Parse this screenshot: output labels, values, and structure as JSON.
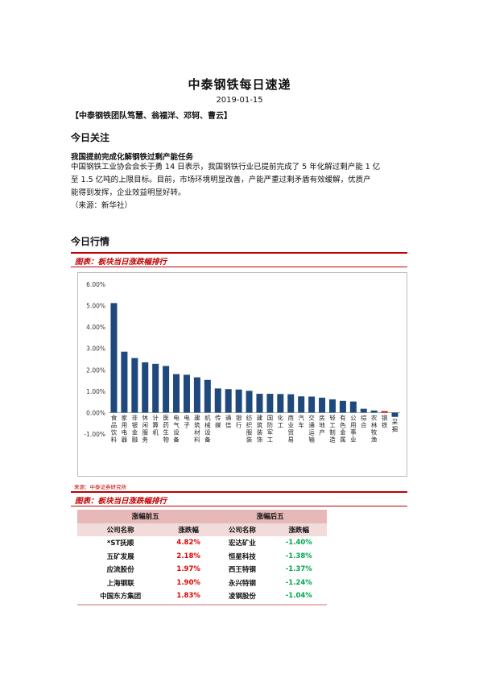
{
  "doc": {
    "title": "中泰钢铁每日速递",
    "date": "2019-01-15",
    "authors": "【中泰钢铁团队笃慧、翁福洋、邓轲、曹云】"
  },
  "focus": {
    "heading": "今日关注",
    "headline": "我国提前完成化解钢铁过剩产能任务",
    "lines": [
      "中国钢铁工业协会会长于勇 14 日表示，我国钢铁行业已提前完成了 5 年化解过剩产能 1 亿",
      "至 1.5 亿吨的上限目标。目前，市场环境明显改善，产能严重过剩矛盾有效缓解，优质产",
      "能得到发挥，企业效益明显好转。",
      "（来源：新华社）"
    ]
  },
  "market": {
    "heading": "今日行情",
    "fig1_title": "图表：板块当日涨跌幅排行",
    "fig1_source": "来源：中泰证券研究所",
    "fig2_title": "图表：板块当日涨跌幅排行"
  },
  "chart_data": {
    "type": "bar",
    "categories": [
      "食品饮料",
      "家用电器",
      "非银金融",
      "休闲服务",
      "计算机",
      "医药生物",
      "电气设备",
      "电子",
      "建筑材料",
      "机械设备",
      "传媒",
      "通信",
      "银行",
      "纺织服装",
      "建筑装饰",
      "国防军工",
      "化工",
      "商业贸易",
      "汽车",
      "交通运输",
      "房地产",
      "轻工制造",
      "有色金属",
      "公用事业",
      "综合",
      "农林牧渔",
      "钢铁",
      "采掘"
    ],
    "values": [
      5.12,
      2.85,
      2.55,
      2.35,
      2.28,
      2.18,
      1.8,
      1.77,
      1.65,
      1.53,
      1.13,
      1.1,
      1.08,
      1.02,
      0.88,
      0.88,
      0.87,
      0.86,
      0.76,
      0.75,
      0.7,
      0.62,
      0.55,
      0.52,
      0.18,
      0.1,
      0.07,
      -0.2
    ],
    "colors": [
      "#1f497d",
      "#1f497d",
      "#1f497d",
      "#1f497d",
      "#1f497d",
      "#1f497d",
      "#1f497d",
      "#1f497d",
      "#1f497d",
      "#1f497d",
      "#1f497d",
      "#1f497d",
      "#1f497d",
      "#1f497d",
      "#1f497d",
      "#1f497d",
      "#1f497d",
      "#1f497d",
      "#1f497d",
      "#1f497d",
      "#1f497d",
      "#1f497d",
      "#1f497d",
      "#1f497d",
      "#1f497d",
      "#1f497d",
      "#e00000",
      "#1f497d"
    ],
    "yticks": [
      "6.00%",
      "5.00%",
      "4.00%",
      "3.00%",
      "2.00%",
      "1.00%",
      "0.00%",
      "-1.00%"
    ],
    "ylim": [
      -1,
      6
    ],
    "grid": false,
    "title": "",
    "xlabel": "",
    "ylabel": ""
  },
  "table": {
    "group_top": "涨幅前五",
    "group_bottom": "涨幅后五",
    "col_name": "公司名称",
    "col_change": "涨跌幅",
    "rows": [
      {
        "top_name": "*ST抚顺",
        "top_change": "4.82%",
        "bottom_name": "宏达矿业",
        "bottom_change": "-1.40%"
      },
      {
        "top_name": "五矿发展",
        "top_change": "2.18%",
        "bottom_name": "恒星科技",
        "bottom_change": "-1.38%"
      },
      {
        "top_name": "应流股份",
        "top_change": "1.97%",
        "bottom_name": "西王特钢",
        "bottom_change": "-1.37%"
      },
      {
        "top_name": "上海钢联",
        "top_change": "1.90%",
        "bottom_name": "永兴特钢",
        "bottom_change": "-1.24%"
      },
      {
        "top_name": "中国东方集团",
        "top_change": "1.83%",
        "bottom_name": "凌钢股份",
        "bottom_change": "-1.04%"
      }
    ]
  }
}
